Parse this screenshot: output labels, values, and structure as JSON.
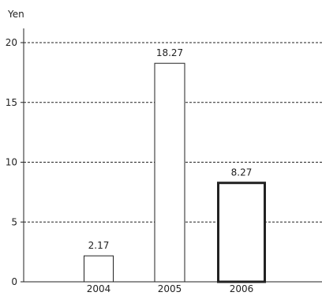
{
  "chart_data": {
    "type": "bar",
    "title": "",
    "xlabel": "",
    "ylabel": "Yen",
    "categories": [
      "2004",
      "2005",
      "2006"
    ],
    "values": [
      2.17,
      18.27,
      8.27
    ],
    "value_labels": [
      "2.17",
      "18.27",
      "8.27"
    ],
    "ylim": [
      0,
      22
    ],
    "yticks": [
      0,
      5,
      10,
      15,
      20
    ],
    "ytick_labels": [
      "0",
      "5",
      "10",
      "15",
      "20"
    ],
    "grid": "horizontal dashed",
    "highlighted_category": "2006",
    "colors": {
      "bar_fill": "#ffffff",
      "bar_stroke": "#222222",
      "grid": "#222222",
      "axis": "#222222",
      "text": "#222222"
    }
  }
}
